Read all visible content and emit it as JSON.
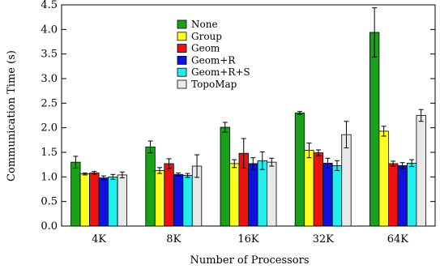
{
  "chart_data": {
    "type": "bar",
    "title": "",
    "xlabel": "Number of Processors",
    "ylabel": "Communication Time (s)",
    "ylim": [
      0,
      4.5
    ],
    "yticks": [
      "0.0",
      "0.5",
      "1.0",
      "1.5",
      "2.0",
      "2.5",
      "3.0",
      "3.5",
      "4.0",
      "4.5"
    ],
    "categories": [
      "4K",
      "8K",
      "16K",
      "32K",
      "64K"
    ],
    "legend_position": "top-center",
    "grid": false,
    "error_bars": true,
    "series": [
      {
        "name": "None",
        "color": "#1aa01a",
        "values": [
          1.3,
          1.61,
          2.01,
          2.3,
          3.94
        ],
        "err": [
          0.12,
          0.12,
          0.1,
          0.03,
          0.5
        ]
      },
      {
        "name": "Group",
        "color": "#ffff22",
        "values": [
          1.06,
          1.13,
          1.27,
          1.54,
          1.93
        ],
        "err": [
          0.02,
          0.06,
          0.08,
          0.15,
          0.1
        ]
      },
      {
        "name": "Geom",
        "color": "#ee1111",
        "values": [
          1.08,
          1.27,
          1.48,
          1.49,
          1.27
        ],
        "err": [
          0.03,
          0.1,
          0.3,
          0.06,
          0.05
        ]
      },
      {
        "name": "Geom+R",
        "color": "#1111dd",
        "values": [
          0.98,
          1.05,
          1.27,
          1.28,
          1.23
        ],
        "err": [
          0.04,
          0.03,
          0.12,
          0.1,
          0.06
        ]
      },
      {
        "name": "Geom+R+S",
        "color": "#22eeee",
        "values": [
          1.0,
          1.03,
          1.33,
          1.23,
          1.28
        ],
        "err": [
          0.05,
          0.04,
          0.18,
          0.1,
          0.07
        ]
      },
      {
        "name": "TopoMap",
        "color": "#e9e9e9",
        "values": [
          1.04,
          1.22,
          1.3,
          1.86,
          2.25
        ],
        "err": [
          0.06,
          0.23,
          0.08,
          0.27,
          0.12
        ]
      }
    ]
  }
}
